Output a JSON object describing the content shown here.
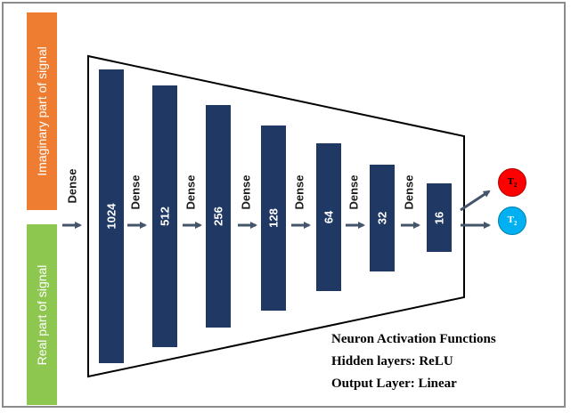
{
  "inputs": {
    "imaginary_label": "Imaginary part of signal",
    "real_label": "Real part of signal"
  },
  "connection_label": "Dense",
  "layers": [
    "1024",
    "512",
    "256",
    "128",
    "64",
    "32",
    "16"
  ],
  "outputs": [
    {
      "symbol": "T",
      "subscript": "2",
      "color": "#ff0000"
    },
    {
      "symbol": "T",
      "subscript": "2",
      "color": "#00b0f0"
    }
  ],
  "legend": {
    "title": "Neuron Activation Functions",
    "hidden": "Hidden layers: ReLU",
    "output": "Output Layer: Linear"
  },
  "colors": {
    "layer": "#1f3864",
    "arrow": "#44546a",
    "imaginary": "#ee7d31",
    "real": "#8dc750"
  }
}
